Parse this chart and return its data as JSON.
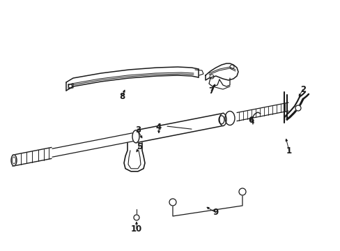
{
  "bg_color": "#ffffff",
  "line_color": "#1a1a1a",
  "figsize": [
    4.89,
    3.6
  ],
  "dpi": 100,
  "lw": 1.0,
  "label_fontsize": 8.5
}
